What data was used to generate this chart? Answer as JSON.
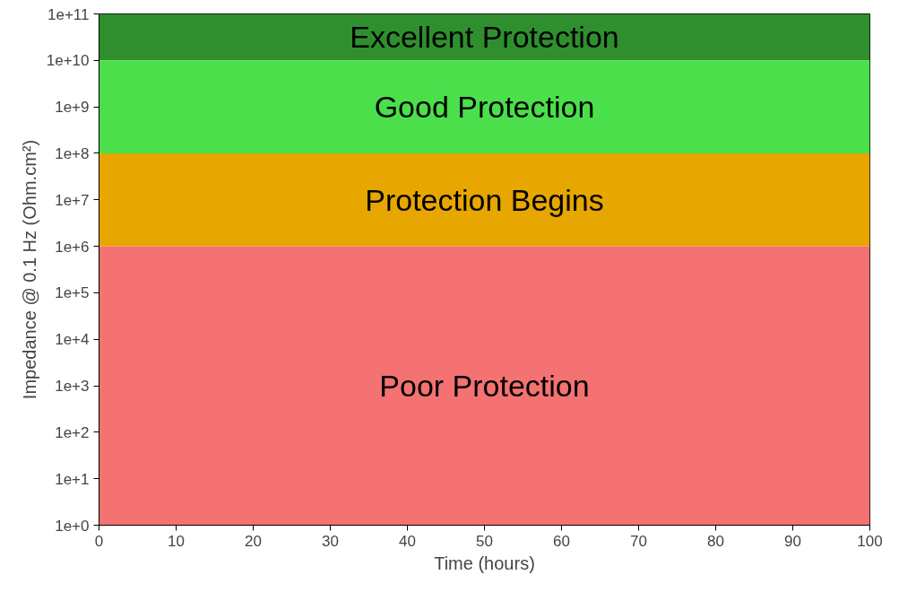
{
  "chart_data": {
    "type": "line",
    "xlabel": "Time (hours)",
    "ylabel": "Impedance @ 0.1 Hz (Ohm.cm²)",
    "log": "y",
    "grid": false,
    "xlim": [
      0,
      100
    ],
    "xticks": [
      0,
      10,
      20,
      30,
      40,
      50,
      60,
      70,
      80,
      90,
      100
    ],
    "ylim": [
      1,
      100000000000
    ],
    "yticks": [
      {
        "value": 1,
        "label": "1e+0"
      },
      {
        "value": 10,
        "label": "1e+1"
      },
      {
        "value": 100,
        "label": "1e+2"
      },
      {
        "value": 1000,
        "label": "1e+3"
      },
      {
        "value": 10000,
        "label": "1e+4"
      },
      {
        "value": 100000,
        "label": "1e+5"
      },
      {
        "value": 1000000,
        "label": "1e+6"
      },
      {
        "value": 10000000,
        "label": "1e+7"
      },
      {
        "value": 100000000,
        "label": "1e+8"
      },
      {
        "value": 1000000000,
        "label": "1e+9"
      },
      {
        "value": 10000000000,
        "label": "1e+10"
      },
      {
        "value": 100000000000,
        "label": "1e+11"
      }
    ],
    "bands": [
      {
        "axis": "y",
        "from": 10000000000,
        "to": 100000000000,
        "label": "Excellent Protection",
        "color": "#2f8f2f"
      },
      {
        "axis": "y",
        "from": 100000000,
        "to": 10000000000,
        "label": "Good Protection",
        "color": "#4be04b"
      },
      {
        "axis": "y",
        "from": 1000000,
        "to": 100000000,
        "label": "Protection Begins",
        "color": "#e8a600"
      },
      {
        "axis": "y",
        "from": 1,
        "to": 1000000,
        "label": "Poor Protection",
        "color": "#f47272"
      }
    ]
  }
}
